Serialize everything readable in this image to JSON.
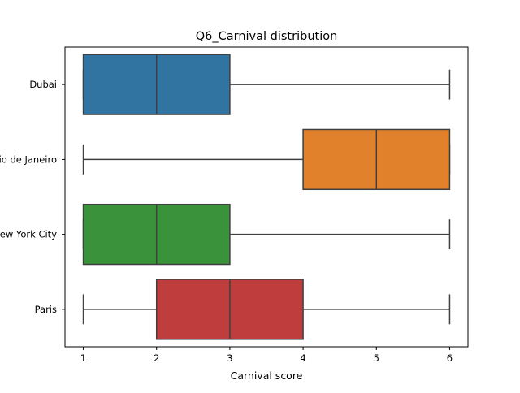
{
  "chart_data": {
    "type": "boxplot",
    "title": "Q6_Carnival distribution",
    "xlabel": "Carnival score",
    "ylabel": "",
    "xlim": [
      0.75,
      6.25
    ],
    "xticks": [
      1,
      2,
      3,
      4,
      5,
      6
    ],
    "xtick_labels": [
      "1",
      "2",
      "3",
      "4",
      "5",
      "6"
    ],
    "grid": false,
    "orientation": "horizontal",
    "categories": [
      "Dubai",
      "Rio de Janeiro",
      "New York City",
      "Paris"
    ],
    "boxes": [
      {
        "category": "Dubai",
        "whisker_low": 1,
        "q1": 1,
        "median": 2,
        "q3": 3,
        "whisker_high": 6,
        "color": "#3274a1"
      },
      {
        "category": "Rio de Janeiro",
        "whisker_low": 1,
        "q1": 4,
        "median": 5,
        "q3": 6,
        "whisker_high": 6,
        "color": "#e1812c"
      },
      {
        "category": "New York City",
        "whisker_low": 1,
        "q1": 1,
        "median": 2,
        "q3": 3,
        "whisker_high": 6,
        "color": "#3a923a"
      },
      {
        "category": "Paris",
        "whisker_low": 1,
        "q1": 2,
        "median": 3,
        "q3": 4,
        "whisker_high": 6,
        "color": "#c03d3e"
      }
    ]
  }
}
